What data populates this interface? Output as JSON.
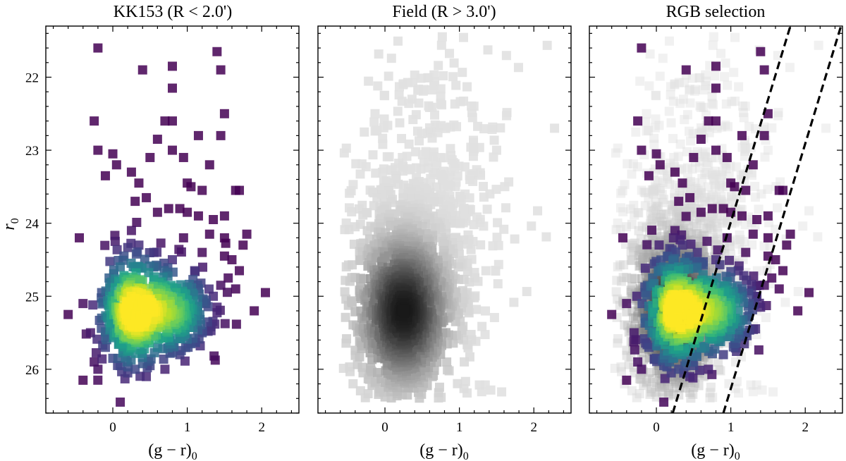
{
  "chart_data": [
    {
      "type": "scatter",
      "title": "KK153 (R < 2.0')",
      "xlabel_main": "(g − r)",
      "xlabel_sub": "0",
      "ylabel_main": "r",
      "ylabel_sub": "0",
      "xlim": [
        -0.9,
        2.5
      ],
      "ylim": [
        26.6,
        21.3
      ],
      "xticks": [
        0,
        1,
        2
      ],
      "yticks": [
        22,
        23,
        24,
        25,
        26
      ],
      "colormap": "viridis",
      "density_centers": [
        [
          0.25,
          25.2
        ],
        [
          0.8,
          25.2
        ]
      ],
      "points": [
        [
          -0.2,
          21.6
        ],
        [
          0.4,
          21.9
        ],
        [
          0.8,
          21.85
        ],
        [
          0.8,
          22.15
        ],
        [
          1.4,
          21.65
        ],
        [
          1.45,
          21.9
        ],
        [
          -0.25,
          22.6
        ],
        [
          1.5,
          22.5
        ],
        [
          0.8,
          22.6
        ],
        [
          0.7,
          22.6
        ],
        [
          -0.2,
          23.0
        ],
        [
          0.0,
          23.05
        ],
        [
          0.6,
          22.85
        ],
        [
          1.15,
          22.8
        ],
        [
          1.45,
          22.8
        ],
        [
          0.05,
          23.2
        ],
        [
          0.25,
          23.3
        ],
        [
          0.5,
          23.1
        ],
        [
          0.8,
          23.0
        ],
        [
          0.95,
          23.1
        ],
        [
          1.3,
          23.2
        ],
        [
          -0.1,
          23.35
        ],
        [
          1.0,
          23.45
        ],
        [
          1.05,
          23.5
        ],
        [
          1.2,
          23.55
        ],
        [
          0.35,
          23.45
        ],
        [
          1.65,
          23.55
        ],
        [
          1.7,
          23.55
        ],
        [
          1.5,
          23.9
        ],
        [
          1.8,
          24.15
        ],
        [
          1.75,
          24.3
        ],
        [
          -0.45,
          24.2
        ],
        [
          0.3,
          23.7
        ],
        [
          0.45,
          23.65
        ],
        [
          0.6,
          23.85
        ],
        [
          0.75,
          23.8
        ],
        [
          0.9,
          23.8
        ],
        [
          1.0,
          23.85
        ],
        [
          1.15,
          23.9
        ],
        [
          1.35,
          23.95
        ],
        [
          1.3,
          24.15
        ],
        [
          1.5,
          24.45
        ],
        [
          1.55,
          24.75
        ],
        [
          1.45,
          24.85
        ],
        [
          1.65,
          24.9
        ],
        [
          1.7,
          24.65
        ],
        [
          1.35,
          25.0
        ],
        [
          1.4,
          25.15
        ],
        [
          1.5,
          24.2
        ],
        [
          1.6,
          24.5
        ],
        [
          2.05,
          24.95
        ],
        [
          1.9,
          25.2
        ],
        [
          -0.6,
          25.25
        ],
        [
          -0.4,
          25.1
        ],
        [
          -0.3,
          25.5
        ],
        [
          -0.4,
          26.15
        ],
        [
          0.1,
          26.45
        ],
        [
          -0.25,
          25.9
        ],
        [
          -0.2,
          26.0
        ],
        [
          -0.1,
          25.7
        ],
        [
          0.0,
          25.85
        ],
        [
          -0.15,
          25.3
        ],
        [
          1.2,
          25.5
        ],
        [
          1.05,
          25.65
        ],
        [
          0.9,
          25.8
        ],
        [
          0.5,
          25.95
        ],
        [
          0.3,
          26.0
        ],
        [
          0.7,
          26.0
        ],
        [
          0.45,
          26.1
        ],
        [
          0.2,
          26.05
        ],
        [
          0.1,
          25.95
        ],
        [
          0.25,
          24.1
        ],
        [
          0.35,
          24.3
        ],
        [
          0.15,
          24.45
        ],
        [
          0.55,
          24.4
        ],
        [
          0.95,
          24.2
        ],
        [
          0.8,
          24.5
        ],
        [
          1.2,
          24.4
        ],
        [
          1.1,
          24.65
        ],
        [
          -0.05,
          24.75
        ],
        [
          -0.15,
          24.95
        ],
        [
          0.0,
          25.0
        ],
        [
          0.1,
          24.6
        ],
        [
          0.4,
          24.8
        ],
        [
          0.55,
          24.6
        ],
        [
          0.7,
          24.85
        ],
        [
          0.85,
          24.95
        ],
        [
          1.0,
          25.05
        ],
        [
          1.15,
          24.9
        ],
        [
          1.25,
          25.1
        ],
        [
          0.2,
          25.1
        ],
        [
          0.3,
          25.25
        ],
        [
          0.25,
          25.4
        ],
        [
          0.35,
          25.2
        ],
        [
          0.6,
          25.3
        ],
        [
          0.75,
          25.25
        ],
        [
          0.9,
          25.35
        ],
        [
          1.0,
          25.3
        ],
        [
          0.45,
          25.55
        ],
        [
          0.6,
          25.7
        ],
        [
          0.75,
          25.55
        ],
        [
          0.3,
          25.6
        ],
        [
          0.15,
          25.75
        ],
        [
          0.05,
          25.5
        ],
        [
          -0.05,
          25.35
        ],
        [
          0.2,
          24.9
        ],
        [
          0.3,
          24.6
        ],
        [
          0.45,
          25.05
        ],
        [
          1.1,
          25.2
        ],
        [
          0.95,
          25.55
        ]
      ]
    },
    {
      "type": "scatter",
      "title": "Field (R > 3.0')",
      "xlabel_main": "(g − r)",
      "xlabel_sub": "0",
      "xlim": [
        -0.9,
        2.5
      ],
      "ylim": [
        26.6,
        21.3
      ],
      "xticks": [
        0,
        1,
        2
      ],
      "yticks": [
        22,
        23,
        24,
        25,
        26
      ],
      "colormap": "greys",
      "density_center": [
        0.25,
        25.2
      ],
      "extent_x": [
        -0.6,
        2.3
      ],
      "extent_y": [
        21.3,
        26.6
      ]
    },
    {
      "type": "scatter",
      "title": "RGB selection",
      "xlabel_main": "(g − r)",
      "xlabel_sub": "0",
      "xlim": [
        -0.9,
        2.5
      ],
      "ylim": [
        26.6,
        21.3
      ],
      "xticks": [
        0,
        1,
        2
      ],
      "yticks": [
        22,
        23,
        24,
        25,
        26
      ],
      "overlay": "field + KK153",
      "selection_lines": [
        {
          "x": [
            0.22,
            1.8
          ],
          "y": [
            26.6,
            21.3
          ]
        },
        {
          "x": [
            0.9,
            2.48
          ],
          "y": [
            26.6,
            21.3
          ]
        }
      ]
    }
  ]
}
